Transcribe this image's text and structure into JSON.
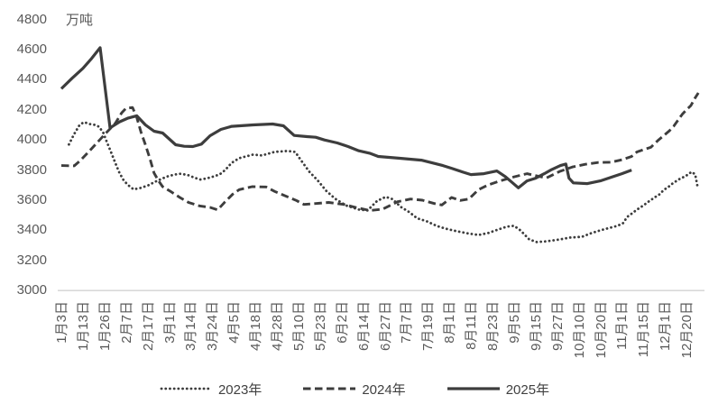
{
  "chart": {
    "unit": "万吨",
    "background": "#ffffff",
    "line_color": "#3d3d3d",
    "axis_text_color": "#595959",
    "baseline_color": "#d2d2d2"
  },
  "chart_data": {
    "type": "line",
    "title": "",
    "ylabel": "万吨",
    "xlabel": "",
    "ylim": [
      3000,
      4800
    ],
    "y_ticks": [
      3000,
      3200,
      3400,
      3600,
      3800,
      4000,
      4200,
      4400,
      4600,
      4800
    ],
    "grid": false,
    "legend_position": "bottom",
    "categories": [
      "1月3日",
      "1月13日",
      "1月26日",
      "2月7日",
      "2月17日",
      "3月1日",
      "3月14日",
      "3月24日",
      "4月5日",
      "4月18日",
      "4月28日",
      "5月10日",
      "5月23日",
      "6月2日",
      "6月14日",
      "6月27日",
      "7月7日",
      "7月19日",
      "8月1日",
      "8月11日",
      "8月23日",
      "9月5日",
      "9月15日",
      "9月27日",
      "10月10日",
      "10月20日",
      "11月1日",
      "11月15日",
      "12月1日",
      "12月20日"
    ],
    "series": [
      {
        "name": "2023年",
        "style": "dotted",
        "points": [
          [
            0.35,
            3970
          ],
          [
            0.6,
            4040
          ],
          [
            0.85,
            4100
          ],
          [
            1.05,
            4118
          ],
          [
            1.3,
            4106
          ],
          [
            1.55,
            4100
          ],
          [
            1.75,
            4088
          ],
          [
            1.95,
            4046
          ],
          [
            2.1,
            3990
          ],
          [
            2.3,
            3920
          ],
          [
            2.5,
            3848
          ],
          [
            2.7,
            3780
          ],
          [
            2.9,
            3730
          ],
          [
            3.1,
            3700
          ],
          [
            3.35,
            3672
          ],
          [
            3.7,
            3682
          ],
          [
            4.05,
            3700
          ],
          [
            4.3,
            3719
          ],
          [
            4.55,
            3735
          ],
          [
            4.9,
            3757
          ],
          [
            5.25,
            3770
          ],
          [
            5.55,
            3776
          ],
          [
            5.9,
            3765
          ],
          [
            6.2,
            3748
          ],
          [
            6.45,
            3737
          ],
          [
            6.75,
            3745
          ],
          [
            7.05,
            3757
          ],
          [
            7.35,
            3772
          ],
          [
            7.6,
            3800
          ],
          [
            7.9,
            3848
          ],
          [
            8.25,
            3879
          ],
          [
            8.9,
            3903
          ],
          [
            9.3,
            3897
          ],
          [
            9.9,
            3921
          ],
          [
            10.5,
            3927
          ],
          [
            10.85,
            3920
          ],
          [
            11.1,
            3868
          ],
          [
            11.5,
            3790
          ],
          [
            11.9,
            3730
          ],
          [
            12.3,
            3660
          ],
          [
            12.7,
            3610
          ],
          [
            13.2,
            3565
          ],
          [
            13.8,
            3538
          ],
          [
            14.2,
            3532
          ],
          [
            14.65,
            3595
          ],
          [
            15.05,
            3622
          ],
          [
            15.35,
            3608
          ],
          [
            15.75,
            3555
          ],
          [
            16.15,
            3520
          ],
          [
            16.5,
            3480
          ],
          [
            16.95,
            3460
          ],
          [
            17.4,
            3430
          ],
          [
            17.8,
            3412
          ],
          [
            18.3,
            3395
          ],
          [
            18.85,
            3380
          ],
          [
            19.35,
            3369
          ],
          [
            19.8,
            3382
          ],
          [
            20.25,
            3405
          ],
          [
            20.65,
            3424
          ],
          [
            21.0,
            3430
          ],
          [
            21.3,
            3399
          ],
          [
            21.7,
            3340
          ],
          [
            22.05,
            3322
          ],
          [
            22.5,
            3327
          ],
          [
            23.1,
            3339
          ],
          [
            23.6,
            3352
          ],
          [
            24.15,
            3357
          ],
          [
            24.6,
            3382
          ],
          [
            25.0,
            3400
          ],
          [
            25.4,
            3415
          ],
          [
            25.8,
            3430
          ],
          [
            26.05,
            3447
          ],
          [
            26.25,
            3489
          ],
          [
            26.45,
            3510
          ],
          [
            26.7,
            3537
          ],
          [
            27.0,
            3565
          ],
          [
            27.3,
            3597
          ],
          [
            27.55,
            3621
          ],
          [
            27.75,
            3639
          ],
          [
            27.95,
            3669
          ],
          [
            28.15,
            3687
          ],
          [
            28.35,
            3711
          ],
          [
            28.55,
            3729
          ],
          [
            28.75,
            3747
          ],
          [
            28.95,
            3758
          ],
          [
            29.1,
            3776
          ],
          [
            29.25,
            3788
          ],
          [
            29.4,
            3770
          ],
          [
            29.5,
            3700
          ]
        ]
      },
      {
        "name": "2024年",
        "style": "dashed",
        "points": [
          [
            0,
            3830
          ],
          [
            0.6,
            3828
          ],
          [
            0.9,
            3866
          ],
          [
            1.3,
            3926
          ],
          [
            1.7,
            3988
          ],
          [
            2.1,
            4050
          ],
          [
            2.5,
            4110
          ],
          [
            2.8,
            4180
          ],
          [
            3.0,
            4210
          ],
          [
            3.3,
            4215
          ],
          [
            3.5,
            4150
          ],
          [
            3.7,
            4050
          ],
          [
            3.9,
            3968
          ],
          [
            4.1,
            3880
          ],
          [
            4.3,
            3780
          ],
          [
            4.5,
            3730
          ],
          [
            4.7,
            3690
          ],
          [
            5.1,
            3655
          ],
          [
            5.5,
            3618
          ],
          [
            5.9,
            3585
          ],
          [
            6.4,
            3562
          ],
          [
            6.9,
            3552
          ],
          [
            7.25,
            3536
          ],
          [
            7.6,
            3590
          ],
          [
            7.95,
            3640
          ],
          [
            8.25,
            3670
          ],
          [
            8.85,
            3690
          ],
          [
            9.5,
            3688
          ],
          [
            9.9,
            3658
          ],
          [
            10.5,
            3622
          ],
          [
            10.9,
            3598
          ],
          [
            11.25,
            3572
          ],
          [
            11.8,
            3578
          ],
          [
            12.4,
            3585
          ],
          [
            13.1,
            3572
          ],
          [
            13.7,
            3550
          ],
          [
            14.3,
            3532
          ],
          [
            14.9,
            3540
          ],
          [
            15.6,
            3590
          ],
          [
            16.2,
            3608
          ],
          [
            16.75,
            3600
          ],
          [
            17.3,
            3578
          ],
          [
            17.65,
            3568
          ],
          [
            18.1,
            3618
          ],
          [
            18.5,
            3598
          ],
          [
            18.9,
            3608
          ],
          [
            19.35,
            3670
          ],
          [
            19.8,
            3702
          ],
          [
            20.4,
            3730
          ],
          [
            21.0,
            3755
          ],
          [
            21.6,
            3776
          ],
          [
            22.1,
            3760
          ],
          [
            22.5,
            3748
          ],
          [
            23.1,
            3790
          ],
          [
            23.7,
            3820
          ],
          [
            24.3,
            3838
          ],
          [
            24.9,
            3850
          ],
          [
            25.5,
            3852
          ],
          [
            26.0,
            3868
          ],
          [
            26.45,
            3890
          ],
          [
            26.7,
            3920
          ],
          [
            27.1,
            3940
          ],
          [
            27.35,
            3952
          ],
          [
            27.7,
            4000
          ],
          [
            27.95,
            4030
          ],
          [
            28.2,
            4060
          ],
          [
            28.4,
            4090
          ],
          [
            28.6,
            4130
          ],
          [
            28.8,
            4170
          ],
          [
            29.0,
            4200
          ],
          [
            29.2,
            4228
          ],
          [
            29.4,
            4280
          ],
          [
            29.55,
            4312
          ]
        ]
      },
      {
        "name": "2025年",
        "style": "solid",
        "points": [
          [
            0,
            4340
          ],
          [
            0.5,
            4410
          ],
          [
            1,
            4475
          ],
          [
            1.4,
            4540
          ],
          [
            1.8,
            4612
          ],
          [
            2.26,
            4080
          ],
          [
            2.7,
            4120
          ],
          [
            3.1,
            4145
          ],
          [
            3.5,
            4160
          ],
          [
            3.9,
            4100
          ],
          [
            4.3,
            4058
          ],
          [
            4.7,
            4046
          ],
          [
            5.3,
            3968
          ],
          [
            5.7,
            3958
          ],
          [
            6.1,
            3956
          ],
          [
            6.5,
            3972
          ],
          [
            6.9,
            4028
          ],
          [
            7.4,
            4070
          ],
          [
            7.9,
            4090
          ],
          [
            8.9,
            4100
          ],
          [
            9.8,
            4106
          ],
          [
            10.3,
            4094
          ],
          [
            10.8,
            4030
          ],
          [
            11.4,
            4022
          ],
          [
            11.8,
            4018
          ],
          [
            12.2,
            4000
          ],
          [
            12.8,
            3980
          ],
          [
            13.3,
            3956
          ],
          [
            13.8,
            3928
          ],
          [
            14.3,
            3912
          ],
          [
            14.7,
            3890
          ],
          [
            15.7,
            3878
          ],
          [
            16.7,
            3866
          ],
          [
            17.2,
            3848
          ],
          [
            17.7,
            3830
          ],
          [
            18.1,
            3812
          ],
          [
            18.6,
            3788
          ],
          [
            19.0,
            3770
          ],
          [
            19.6,
            3776
          ],
          [
            20.2,
            3794
          ],
          [
            20.6,
            3756
          ],
          [
            21.2,
            3682
          ],
          [
            21.6,
            3728
          ],
          [
            22.0,
            3746
          ],
          [
            22.4,
            3776
          ],
          [
            22.7,
            3800
          ],
          [
            23.15,
            3830
          ],
          [
            23.4,
            3840
          ],
          [
            23.55,
            3746
          ],
          [
            23.75,
            3715
          ],
          [
            24.4,
            3710
          ],
          [
            25.0,
            3728
          ],
          [
            25.5,
            3752
          ],
          [
            26.0,
            3776
          ],
          [
            26.45,
            3800
          ]
        ]
      }
    ]
  },
  "legend": {
    "items": [
      "2023年",
      "2024年",
      "2025年"
    ]
  }
}
